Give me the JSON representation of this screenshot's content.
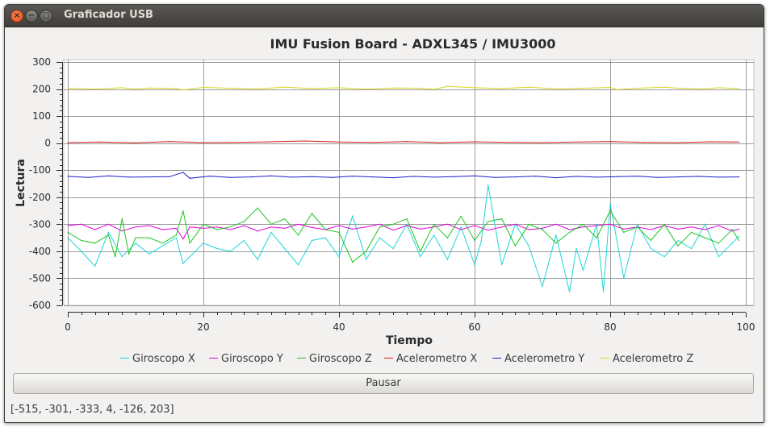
{
  "window": {
    "title": "Graficador USB"
  },
  "controls": {
    "pause_label": "Pausar"
  },
  "status": {
    "text": "[-515, -301, -333, 4, -126, 203]"
  },
  "chart_data": {
    "type": "line",
    "title": "IMU Fusion Board - ADXL345 / IMU3000",
    "xlabel": "Tiempo",
    "ylabel": "Lectura",
    "xlim": [
      0,
      100
    ],
    "ylim": [
      -600,
      300
    ],
    "xticks": [
      0,
      20,
      40,
      60,
      80,
      100
    ],
    "yticks": [
      300,
      200,
      100,
      0,
      -100,
      -200,
      -300,
      -400,
      -500,
      -600
    ],
    "grid": true,
    "legend_position": "bottom",
    "series": [
      {
        "name": "Giroscopo X",
        "color": "#1fd6d6",
        "x": [
          0,
          2,
          4,
          6,
          8,
          10,
          12,
          14,
          16,
          17,
          18,
          20,
          22,
          24,
          26,
          28,
          30,
          32,
          34,
          36,
          38,
          40,
          42,
          44,
          46,
          48,
          50,
          52,
          54,
          56,
          58,
          60,
          61,
          62,
          64,
          66,
          68,
          70,
          72,
          74,
          75,
          76,
          78,
          79,
          80,
          82,
          84,
          86,
          88,
          90,
          92,
          94,
          96,
          98,
          99
        ],
        "values": [
          -350,
          -400,
          -455,
          -330,
          -420,
          -370,
          -410,
          -380,
          -350,
          -445,
          -420,
          -370,
          -390,
          -400,
          -360,
          -430,
          -330,
          -390,
          -450,
          -360,
          -350,
          -420,
          -270,
          -430,
          -350,
          -390,
          -300,
          -420,
          -340,
          -430,
          -310,
          -450,
          -360,
          -155,
          -450,
          -300,
          -380,
          -530,
          -340,
          -550,
          -390,
          -470,
          -300,
          -550,
          -225,
          -500,
          -300,
          -390,
          -420,
          -360,
          -390,
          -300,
          -420,
          -370,
          -345
        ]
      },
      {
        "name": "Giroscopo Y",
        "color": "#e000e0",
        "x": [
          0,
          2,
          4,
          6,
          8,
          10,
          12,
          14,
          16,
          17,
          18,
          20,
          22,
          24,
          26,
          28,
          30,
          32,
          34,
          36,
          38,
          40,
          42,
          44,
          46,
          48,
          50,
          52,
          54,
          56,
          58,
          60,
          62,
          64,
          66,
          68,
          70,
          72,
          74,
          76,
          78,
          80,
          82,
          84,
          86,
          88,
          90,
          92,
          94,
          96,
          98,
          99
        ],
        "values": [
          -305,
          -300,
          -320,
          -300,
          -325,
          -310,
          -305,
          -320,
          -315,
          -355,
          -310,
          -315,
          -310,
          -320,
          -305,
          -325,
          -310,
          -315,
          -300,
          -312,
          -320,
          -305,
          -318,
          -310,
          -300,
          -322,
          -305,
          -318,
          -310,
          -300,
          -320,
          -305,
          -322,
          -310,
          -300,
          -320,
          -315,
          -300,
          -320,
          -310,
          -305,
          -300,
          -318,
          -310,
          -320,
          -305,
          -318,
          -310,
          -320,
          -305,
          -325,
          -318
        ]
      },
      {
        "name": "Giroscopo Z",
        "color": "#1ec41e",
        "x": [
          0,
          2,
          4,
          6,
          7,
          8,
          9,
          10,
          12,
          14,
          16,
          17,
          18,
          20,
          22,
          24,
          26,
          28,
          30,
          32,
          34,
          36,
          38,
          40,
          42,
          44,
          46,
          48,
          50,
          52,
          54,
          56,
          58,
          60,
          62,
          64,
          66,
          68,
          70,
          72,
          74,
          76,
          78,
          80,
          82,
          84,
          86,
          88,
          90,
          92,
          94,
          96,
          98,
          99
        ],
        "values": [
          -330,
          -360,
          -370,
          -340,
          -420,
          -280,
          -410,
          -350,
          -350,
          -370,
          -340,
          -250,
          -370,
          -300,
          -320,
          -310,
          -290,
          -240,
          -300,
          -280,
          -340,
          -260,
          -320,
          -330,
          -440,
          -400,
          -310,
          -300,
          -280,
          -400,
          -300,
          -350,
          -270,
          -360,
          -290,
          -280,
          -380,
          -300,
          -320,
          -370,
          -330,
          -300,
          -350,
          -250,
          -330,
          -310,
          -360,
          -300,
          -380,
          -330,
          -350,
          -370,
          -320,
          -360
        ]
      },
      {
        "name": "Acelerometro X",
        "color": "#d41c1c",
        "x": [
          0,
          5,
          10,
          15,
          20,
          25,
          30,
          35,
          40,
          45,
          50,
          55,
          60,
          65,
          70,
          75,
          80,
          85,
          90,
          95,
          99
        ],
        "values": [
          2,
          4,
          1,
          6,
          2,
          3,
          5,
          8,
          4,
          3,
          6,
          2,
          5,
          3,
          2,
          4,
          6,
          3,
          2,
          5,
          4
        ]
      },
      {
        "name": "Acelerometro Y",
        "color": "#1c1ccc",
        "x": [
          0,
          3,
          6,
          9,
          12,
          15,
          17,
          18,
          21,
          24,
          27,
          30,
          33,
          36,
          39,
          42,
          45,
          48,
          51,
          54,
          57,
          60,
          63,
          66,
          69,
          72,
          75,
          78,
          81,
          84,
          87,
          90,
          93,
          96,
          99
        ],
        "values": [
          -123,
          -127,
          -121,
          -126,
          -125,
          -124,
          -108,
          -130,
          -122,
          -127,
          -125,
          -121,
          -126,
          -124,
          -127,
          -122,
          -125,
          -128,
          -123,
          -126,
          -124,
          -121,
          -127,
          -125,
          -122,
          -128,
          -123,
          -126,
          -124,
          -122,
          -127,
          -125,
          -123,
          -126,
          -125
        ]
      },
      {
        "name": "Acelerometro Z",
        "color": "#d8d820",
        "x": [
          0,
          4,
          8,
          10,
          12,
          16,
          17,
          20,
          24,
          28,
          32,
          36,
          40,
          44,
          48,
          52,
          54,
          56,
          60,
          64,
          68,
          72,
          76,
          80,
          81,
          84,
          88,
          90,
          94,
          96,
          99
        ],
        "values": [
          203,
          200,
          205,
          200,
          204,
          202,
          197,
          206,
          203,
          201,
          207,
          202,
          205,
          200,
          204,
          203,
          199,
          210,
          205,
          202,
          207,
          201,
          203,
          206,
          198,
          203,
          207,
          203,
          201,
          205,
          202
        ]
      }
    ]
  }
}
